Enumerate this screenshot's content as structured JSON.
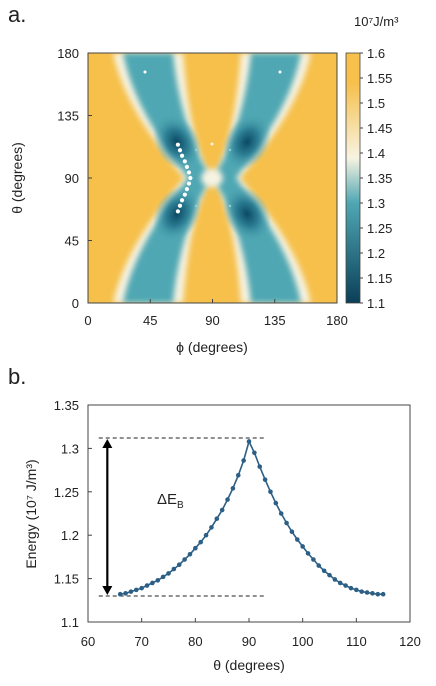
{
  "panels": {
    "a": {
      "label": "a."
    },
    "b": {
      "label": "b."
    }
  },
  "colors": {
    "yellow": "#F6C04B",
    "light": "#F7F3E2",
    "mid": "#4FA7B3",
    "dark": "#0A4A63",
    "curve": "#2C5F86",
    "ridge": "#ffffff"
  },
  "chart_data": [
    {
      "type": "heatmap",
      "xlabel": "ϕ (degrees)",
      "ylabel": "θ (degrees)",
      "xlim": [
        0,
        180
      ],
      "ylim": [
        0,
        180
      ],
      "xticks": [
        0,
        45,
        90,
        135,
        180
      ],
      "yticks": [
        0,
        45,
        90,
        135,
        180
      ],
      "colorbar": {
        "unit_label": "10⁷J/m³",
        "range": [
          1.1,
          1.6
        ],
        "ticks": [
          "1.6",
          "1.55",
          "1.5",
          "1.45",
          "1.4",
          "1.35",
          "1.3",
          "1.25",
          "1.2",
          "1.15",
          "1.1"
        ]
      },
      "path_theta": [
        66,
        70,
        74,
        78,
        82,
        86,
        90,
        94,
        98,
        102,
        106,
        110,
        114
      ],
      "path_phi": [
        65,
        66.5,
        68,
        70,
        71.5,
        73,
        74,
        73,
        71.5,
        70,
        68,
        66.5,
        65
      ]
    },
    {
      "type": "line",
      "xlabel": "θ (degrees)",
      "ylabel": "Energy (10⁷ J/m³)",
      "xlim": [
        60,
        120
      ],
      "ylim": [
        1.1,
        1.35
      ],
      "xticks": [
        "60",
        "70",
        "80",
        "90",
        "100",
        "110",
        "120"
      ],
      "yticks": [
        "1.1",
        "1.15",
        "1.2",
        "1.25",
        "1.3",
        "1.35"
      ],
      "annotation": "ΔE",
      "annotation_sub": "B",
      "barrier_min": 1.13,
      "barrier_max": 1.312,
      "x": [
        66,
        67,
        68,
        69,
        70,
        71,
        72,
        73,
        74,
        75,
        76,
        77,
        78,
        79,
        80,
        81,
        82,
        83,
        84,
        85,
        86,
        87,
        88,
        89,
        90,
        91,
        92,
        93,
        94,
        95,
        96,
        97,
        98,
        99,
        100,
        101,
        102,
        103,
        104,
        105,
        106,
        107,
        108,
        109,
        110,
        111,
        112,
        113,
        114,
        115
      ],
      "y": [
        1.132,
        1.133,
        1.135,
        1.137,
        1.139,
        1.142,
        1.145,
        1.148,
        1.152,
        1.156,
        1.161,
        1.166,
        1.172,
        1.178,
        1.185,
        1.192,
        1.2,
        1.209,
        1.219,
        1.229,
        1.241,
        1.254,
        1.269,
        1.286,
        1.308,
        1.295,
        1.279,
        1.264,
        1.25,
        1.237,
        1.225,
        1.214,
        1.204,
        1.195,
        1.187,
        1.179,
        1.172,
        1.165,
        1.159,
        1.154,
        1.149,
        1.145,
        1.142,
        1.139,
        1.137,
        1.135,
        1.134,
        1.133,
        1.132,
        1.132
      ]
    }
  ]
}
